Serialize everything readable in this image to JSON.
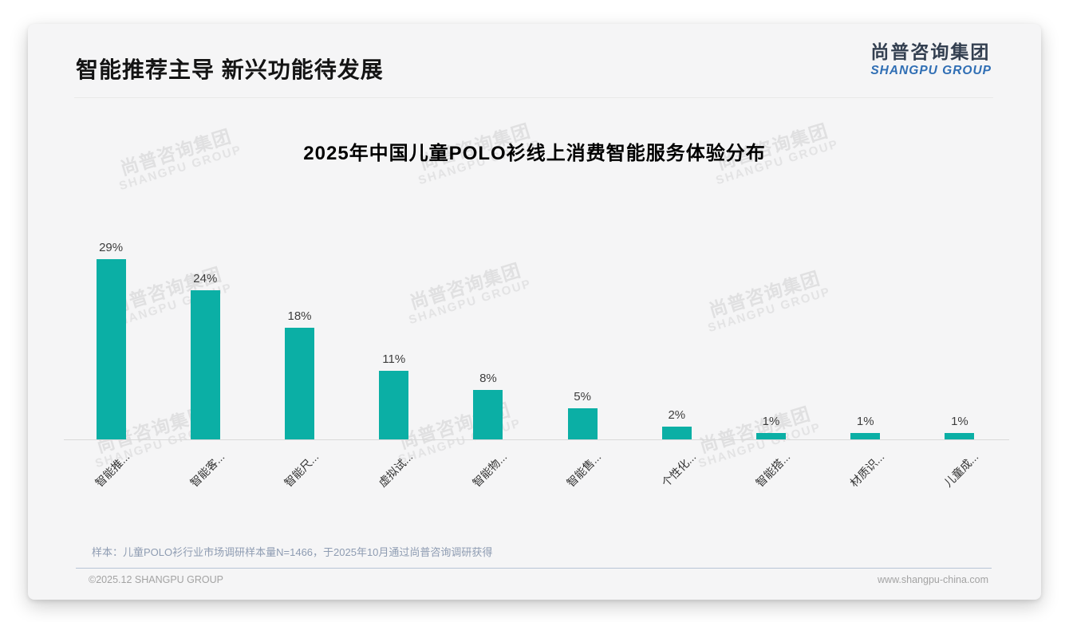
{
  "header": {
    "title": "智能推荐主导 新兴功能待发展"
  },
  "logo": {
    "cn": "尚普咨询集团",
    "en": "SHANGPU GROUP"
  },
  "watermark": {
    "cn": "尚普咨询集团",
    "en": "SHANGPU GROUP"
  },
  "chart_data": {
    "type": "bar",
    "title": "2025年中国儿童POLO衫线上消费智能服务体验分布",
    "categories": [
      "智能推...",
      "智能客...",
      "智能尺...",
      "虚拟试...",
      "智能物...",
      "智能售...",
      "个性化...",
      "智能搭...",
      "材质识...",
      "儿童成..."
    ],
    "values": [
      29,
      24,
      18,
      11,
      8,
      5,
      2,
      1,
      1,
      1
    ],
    "display_values": [
      "29%",
      "24%",
      "18%",
      "11%",
      "8%",
      "5%",
      "2%",
      "1%",
      "1%",
      "1%"
    ],
    "unit": "%",
    "ylim": [
      0,
      32
    ],
    "bar_color": "#0bafa5",
    "grid": false,
    "legend": false,
    "xlabel": "",
    "ylabel": ""
  },
  "footnote": "样本：儿童POLO衫行业市场调研样本量N=1466，于2025年10月通过尚普咨询调研获得",
  "footer": {
    "copyright": "©2025.12 SHANGPU GROUP",
    "website": "www.shangpu-china.com"
  }
}
